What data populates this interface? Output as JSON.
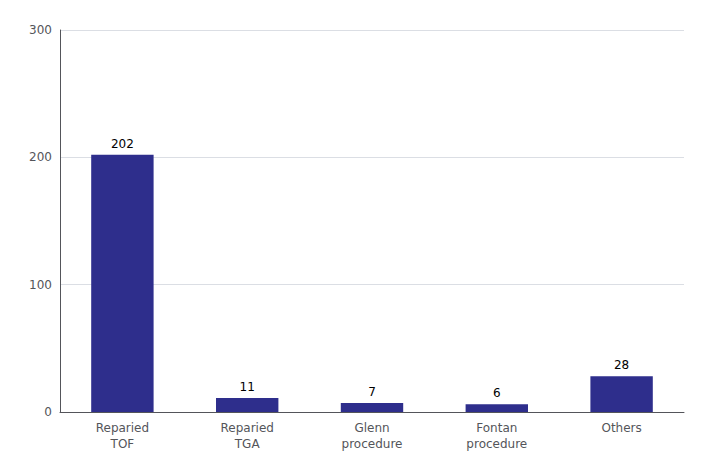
{
  "chart_data": {
    "type": "bar",
    "categories": [
      "Reparied\nTOF",
      "Reparied\nTGA",
      "Glenn\nprocedure",
      "Fontan\nprocedure",
      "Others"
    ],
    "values": [
      202,
      11,
      7,
      6,
      28
    ],
    "color": "#2e2e8c",
    "ylim": [
      0,
      300
    ],
    "yticks": [
      0,
      100,
      200,
      300
    ],
    "grid": true,
    "data_labels": true
  }
}
